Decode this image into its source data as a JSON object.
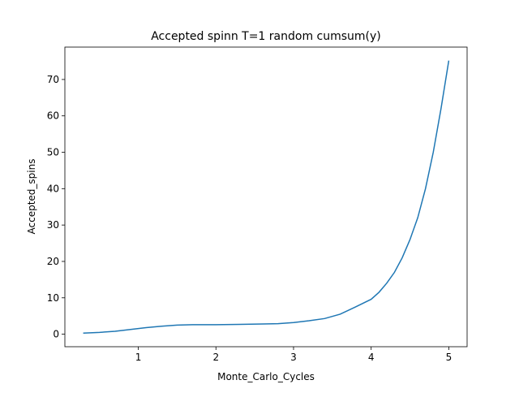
{
  "chart_data": {
    "type": "line",
    "title": "Accepted spinn T=1 random cumsum(y)",
    "x_label": "Monte_Carlo_Cycles",
    "y_label": "Accepted_spins",
    "x": [
      0.29,
      0.5,
      0.7,
      0.9,
      1.1,
      1.3,
      1.5,
      1.7,
      2.0,
      2.3,
      2.6,
      2.8,
      3.0,
      3.2,
      3.4,
      3.6,
      3.8,
      4.0,
      4.1,
      4.2,
      4.3,
      4.4,
      4.5,
      4.6,
      4.7,
      4.8,
      4.9,
      5.0
    ],
    "series": [
      {
        "color": "#1f77b4",
        "values": [
          0.3,
          0.5,
          0.8,
          1.3,
          1.8,
          2.2,
          2.5,
          2.6,
          2.6,
          2.7,
          2.8,
          2.9,
          3.2,
          3.7,
          4.3,
          5.5,
          7.5,
          9.6,
          11.5,
          14,
          17,
          21,
          26,
          32,
          40,
          50,
          62,
          75.2
        ]
      }
    ],
    "xlim": [
      0.054,
      5.236
    ],
    "ylim": [
      -3.44,
      78.9
    ],
    "xticks": [
      1,
      2,
      3,
      4,
      5
    ],
    "yticks": [
      0,
      10,
      20,
      30,
      40,
      50,
      60,
      70
    ]
  }
}
